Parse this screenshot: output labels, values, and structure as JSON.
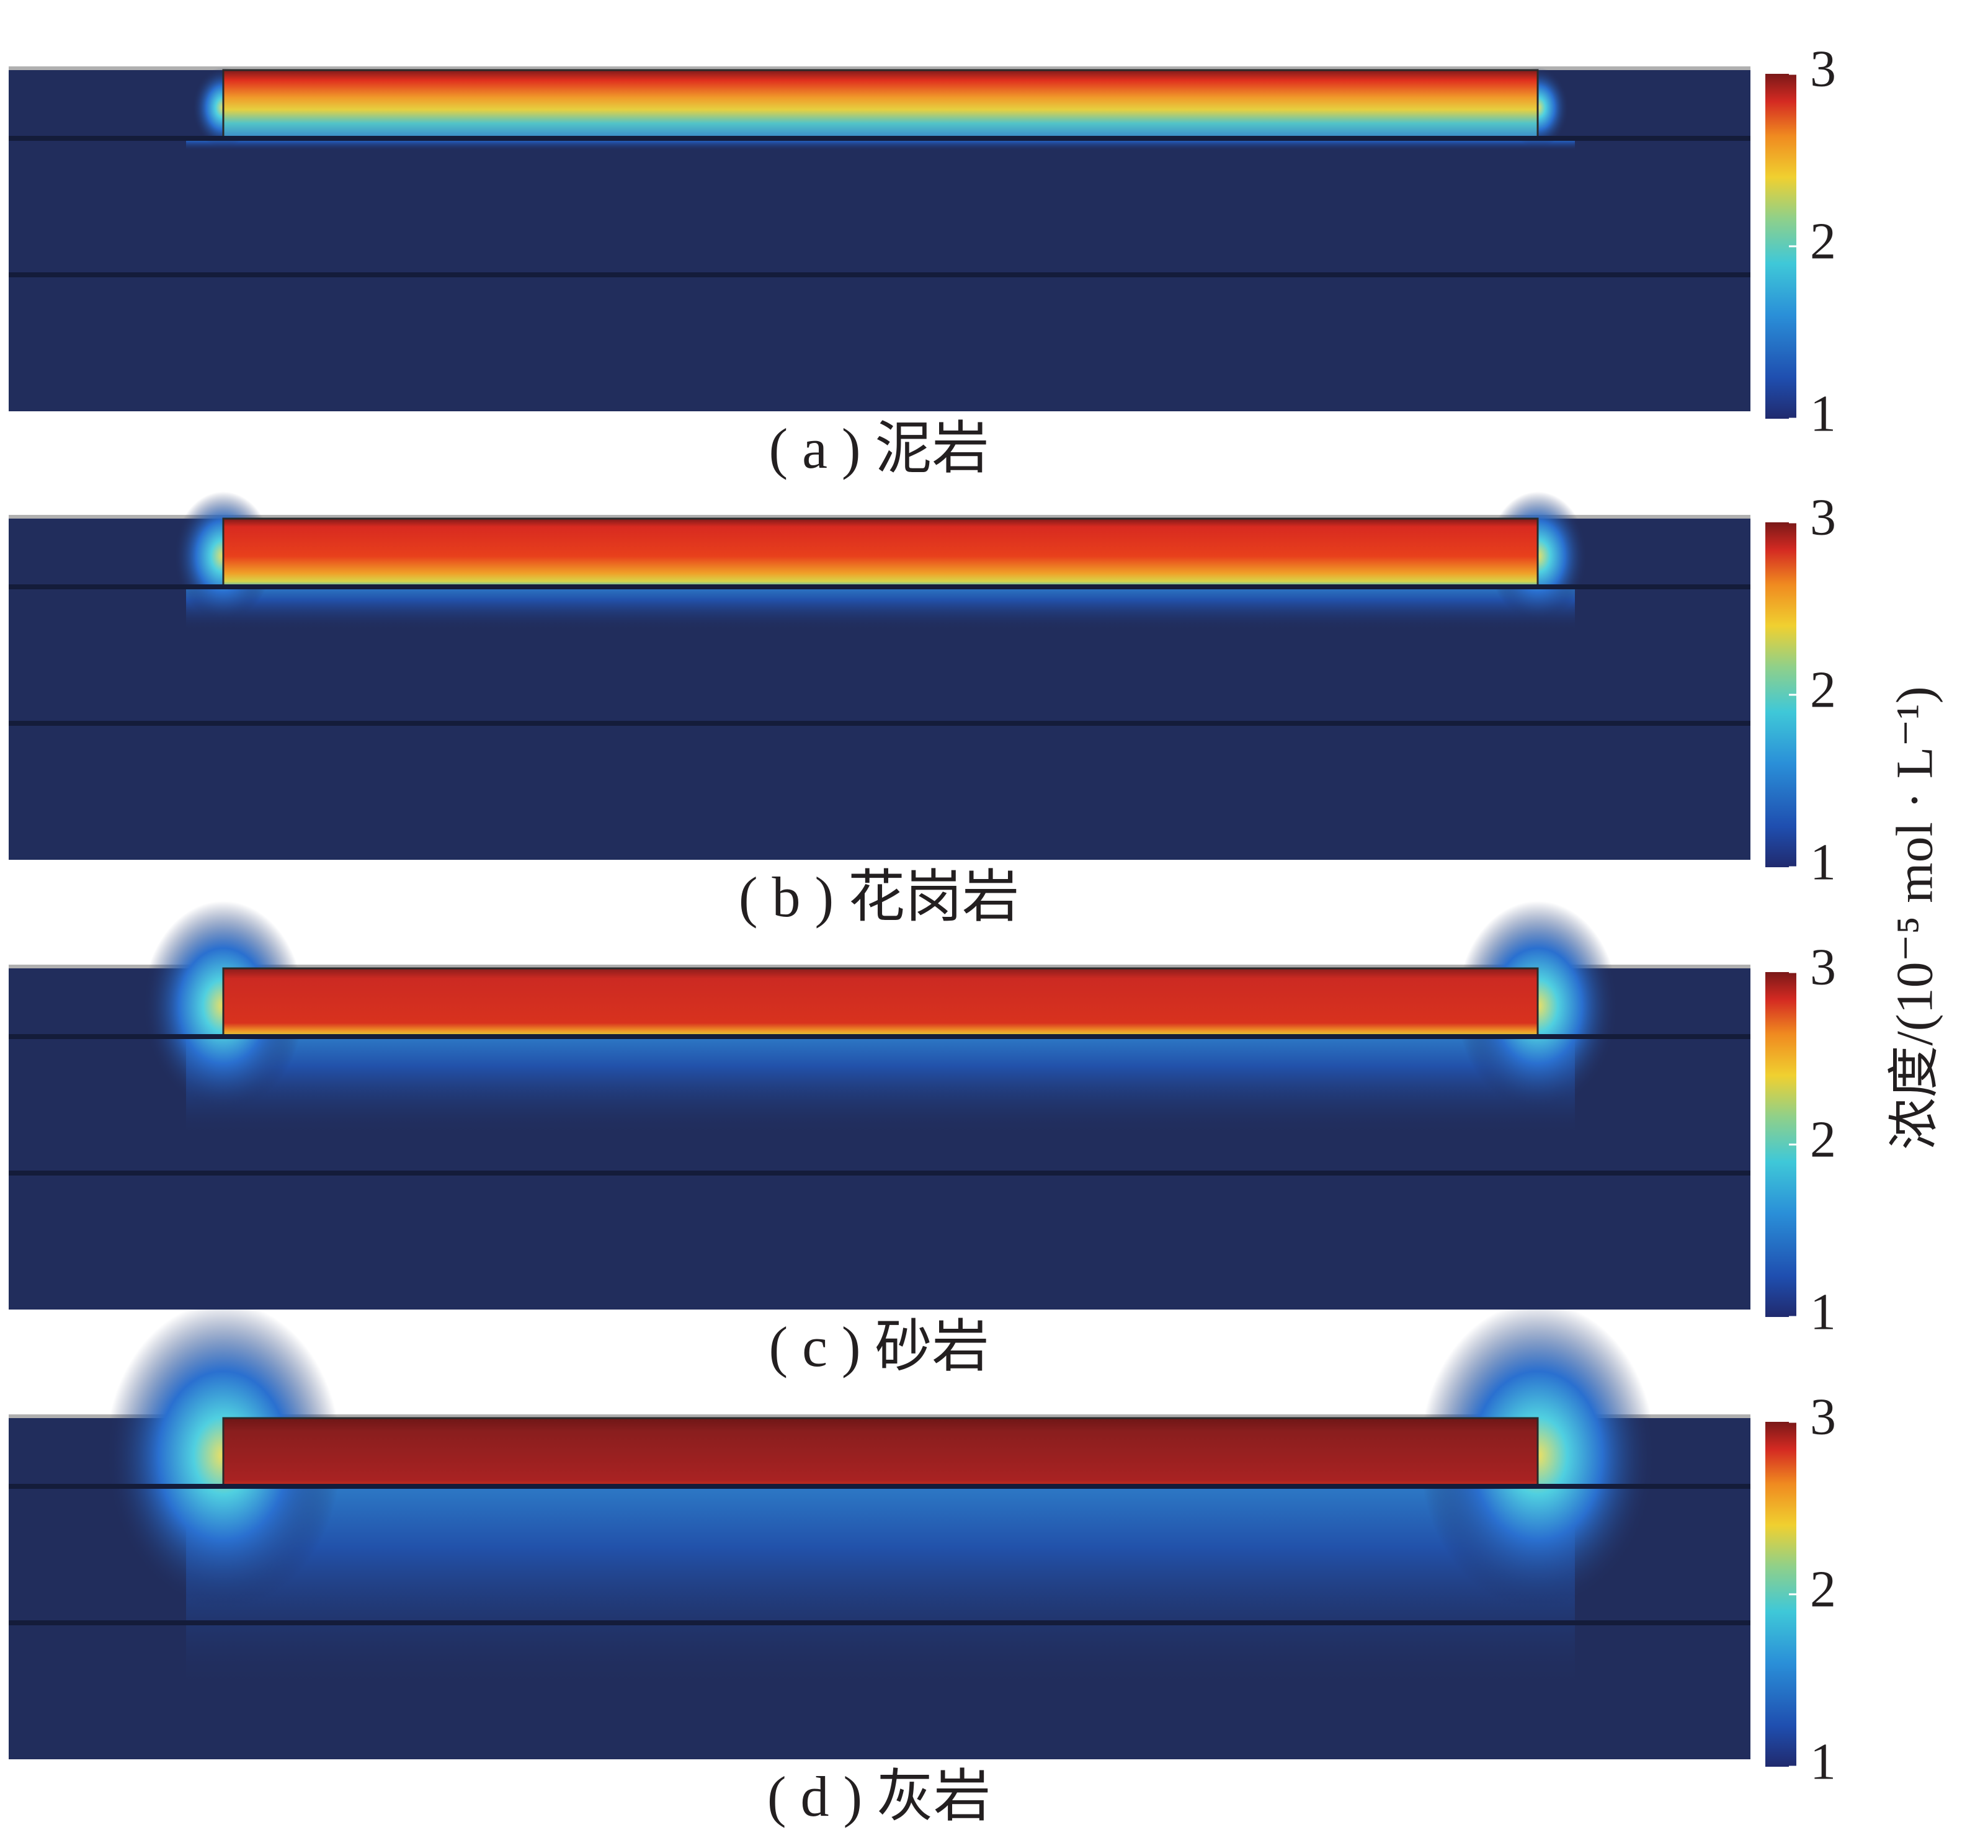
{
  "chart_data": [
    {
      "type": "heatmap",
      "title": "( a ) 泥岩",
      "clim": [
        1,
        3
      ],
      "cticks": [
        1,
        2,
        3
      ]
    },
    {
      "type": "heatmap",
      "title": "( b ) 花岗岩",
      "clim": [
        1,
        3
      ],
      "cticks": [
        1,
        2,
        3
      ]
    },
    {
      "type": "heatmap",
      "title": "( c ) 砂岩",
      "clim": [
        1,
        3
      ],
      "cticks": [
        1,
        2,
        3
      ]
    },
    {
      "type": "heatmap",
      "title": "( d ) 灰岩",
      "clim": [
        1,
        3
      ],
      "cticks": [
        1,
        2,
        3
      ]
    }
  ],
  "colorbar_label": "浓度/(10⁻⁵ mol · L⁻¹)"
}
